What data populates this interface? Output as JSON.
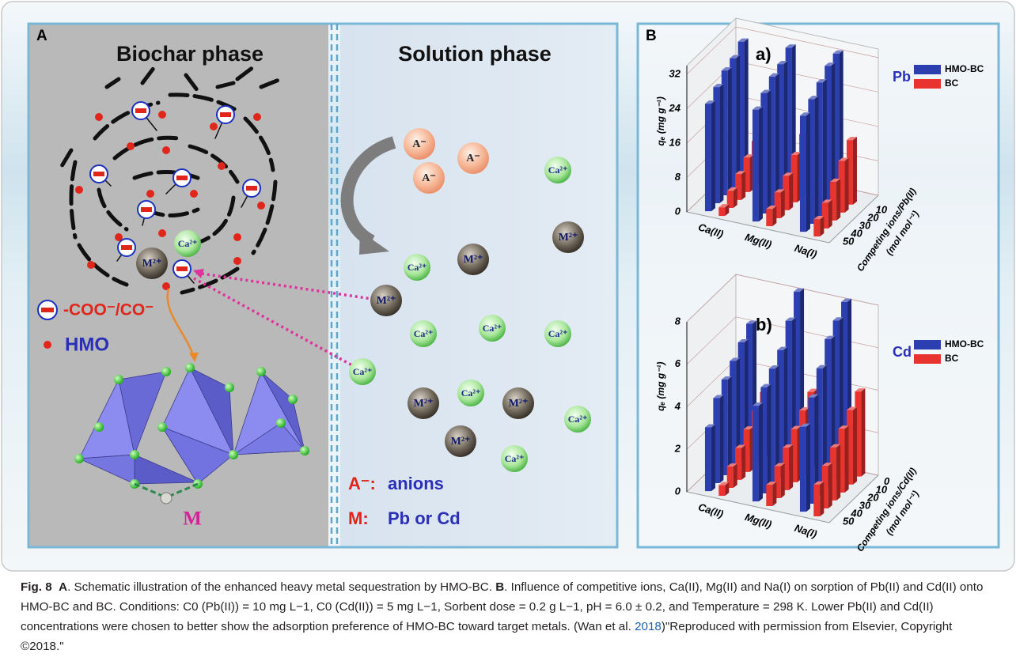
{
  "panel_a": {
    "label": "A",
    "biochar_title": "Biochar phase",
    "solution_title": "Solution phase",
    "biochar_ions": [
      "Ca²⁺",
      "M²⁺"
    ],
    "legend": {
      "carboxyl": "-COO⁻/CO⁻",
      "hmo": "HMO",
      "metal": "M"
    },
    "solution_ions": [
      "A⁻",
      "A⁻",
      "A⁻",
      "Ca²⁺",
      "M²⁺",
      "Ca²⁺",
      "M²⁺",
      "M²⁺",
      "Ca²⁺",
      "Ca²⁺",
      "Ca²⁺",
      "Ca²⁺",
      "M²⁺",
      "Ca²⁺",
      "M²⁺",
      "Ca²⁺",
      "M²⁺",
      "Ca²⁺"
    ],
    "key": {
      "anion_symbol": "A⁻:",
      "anion_text": "anions",
      "metal_symbol": "M:",
      "metal_text": "Pb or Cd"
    }
  },
  "panel_b": {
    "label": "B",
    "charts": [
      {
        "title": "a)",
        "metal": "Pb",
        "y_label": "qₑ (mg g⁻¹)",
        "z_label": "Competing ions/Pb(II)",
        "z_unit": "(mol mol⁻¹)",
        "ylim": [
          0,
          34
        ],
        "yticks": [
          0,
          8,
          16,
          24,
          32
        ],
        "zlim": [
          0,
          50
        ],
        "zticks": [
          10,
          20,
          30,
          40,
          50
        ],
        "categories": [
          "Ca(II)",
          "Mg(II)",
          "Na(I)"
        ],
        "z": [
          10,
          20,
          30,
          40,
          50
        ],
        "series": [
          {
            "name": "HMO-BC",
            "color": "#2c3fb0",
            "values": [
              [
                32,
                30,
                29,
                27,
                25
              ],
              [
                33,
                31,
                30,
                28,
                26
              ],
              [
                34,
                33,
                31,
                29,
                27
              ]
            ]
          },
          {
            "name": "BC",
            "color": "#e8332e",
            "values": [
              [
                10,
                8,
                6,
                4,
                2
              ],
              [
                14,
                11,
                8,
                6,
                4
              ],
              [
                15,
                12,
                9,
                6,
                4
              ]
            ]
          }
        ]
      },
      {
        "title": "b)",
        "metal": "Cd",
        "y_label": "qₑ (mg g⁻¹)",
        "z_label": "Competing ions/Cd(II)",
        "z_unit": "(mol mol⁻¹)",
        "ylim": [
          0,
          8
        ],
        "yticks": [
          0,
          2,
          4,
          6,
          8
        ],
        "zlim": [
          0,
          50
        ],
        "zticks": [
          0,
          10,
          20,
          30,
          40,
          50
        ],
        "categories": [
          "Ca(II)",
          "Mg(II)",
          "Na(I)"
        ],
        "z": [
          0,
          10,
          20,
          30,
          40,
          50
        ],
        "series": [
          {
            "name": "HMO-BC",
            "color": "#2c3fb0",
            "values": [
              [
                6,
                5.5,
                5,
                4.5,
                4,
                3
              ],
              [
                8,
                7,
                6,
                5.5,
                5,
                4.5
              ],
              [
                8,
                7.5,
                7,
                6,
                5,
                4
              ]
            ]
          },
          {
            "name": "BC",
            "color": "#e8332e",
            "values": [
              [
                3,
                2.5,
                2,
                1.5,
                1,
                0.5
              ],
              [
                3.5,
                3,
                2.5,
                2,
                1.5,
                1
              ],
              [
                4,
                3.5,
                3,
                2.5,
                2,
                1.5
              ]
            ]
          }
        ]
      }
    ]
  },
  "caption": {
    "figure_label": "Fig. 8",
    "panel_a": "A",
    "text_a": ". Schematic illustration of the enhanced heavy metal sequestration by HMO-BC. ",
    "panel_b": "B",
    "text_b": ". Influence of competitive ions, Ca(II), Mg(II) and Na(I) on sorption of Pb(II) and Cd(II) onto HMO-BC and BC. Conditions: C0 (Pb(II)) = 10 mg L−1, C0 (Cd(II)) = 5 mg L−1, Sorbent dose = 0.2 g L−1, pH = 6.0 ± 0.2, and Temperature = 298 K. Lower Pb(II) and Cd(II) concentrations were chosen to better show the adsorption preference of HMO-BC toward target metals. (Wan et al. ",
    "citation_year": "2018",
    "text_end": ")\"Reproduced with permission from Elsevier, Copyright ©2018.\""
  }
}
